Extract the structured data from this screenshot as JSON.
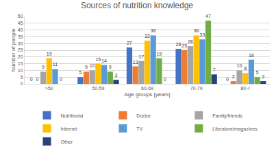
{
  "chart_data": {
    "type": "bar",
    "title": "Sources of nutrition knowledge",
    "x_label": "Age groups [years]",
    "y_label": "Number of people",
    "categories": [
      ">50",
      "50-59",
      "60-69",
      "70-79",
      "80 <"
    ],
    "series": [
      {
        "name": "Nutritionist",
        "color": "#4472c4",
        "values": [
          0,
          5,
          27,
          26,
          0
        ]
      },
      {
        "name": "Doctor",
        "color": "#ed7d31",
        "values": [
          0,
          9,
          13,
          25,
          2
        ]
      },
      {
        "name": "Family/friends",
        "color": "#a5a5a5",
        "values": [
          9,
          10,
          17,
          28,
          10
        ]
      },
      {
        "name": "Internet",
        "color": "#ffc000",
        "values": [
          19,
          15,
          32,
          36,
          8
        ]
      },
      {
        "name": "TV",
        "color": "#5b9bd5",
        "values": [
          11,
          14,
          36,
          33,
          18
        ]
      },
      {
        "name": "Literature/magazines",
        "color": "#70ad47",
        "values": [
          0,
          9,
          19,
          47,
          5
        ]
      },
      {
        "name": "Other",
        "color": "#264478",
        "values": [
          null,
          3,
          0,
          7,
          2
        ]
      }
    ],
    "ylim": [
      0,
      50
    ],
    "yticks": [
      0,
      5,
      10,
      15,
      20,
      25,
      30,
      35,
      40,
      45,
      50
    ],
    "grid": true,
    "legend": "bottom",
    "data_labels": true
  }
}
